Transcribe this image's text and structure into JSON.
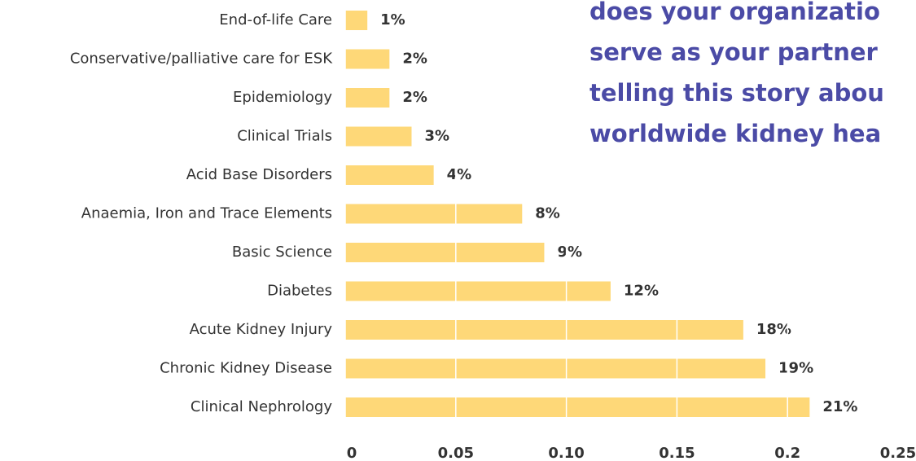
{
  "chart_data": {
    "type": "bar",
    "orientation": "horizontal",
    "annotations": [
      "does your organizatio",
      "serve as your partner",
      "telling this story abou",
      "worldwide kidney hea"
    ],
    "categories": [
      "End-of-life Care",
      "Conservative/palliative care for ESK",
      "Epidemiology",
      "Clinical Trials",
      "Acid Base Disorders",
      "Anaemia, Iron and Trace Elements",
      "Basic Science",
      "Diabetes",
      "Acute Kidney Injury",
      "Chronic Kidney Disease",
      "Clinical Nephrology"
    ],
    "values": [
      0.01,
      0.02,
      0.02,
      0.03,
      0.04,
      0.08,
      0.09,
      0.12,
      0.18,
      0.19,
      0.21
    ],
    "value_labels": [
      "1%",
      "2%",
      "2%",
      "3%",
      "4%",
      "8%",
      "9%",
      "12%",
      "18%",
      "19%",
      "21%"
    ],
    "color": "#fed878",
    "xlim": [
      0,
      0.25
    ],
    "xticks": [
      0,
      0.05,
      {
        "value": 0.1,
        "label": "0.10"
      },
      0.15,
      0.2,
      0.25
    ],
    "grid": true
  }
}
